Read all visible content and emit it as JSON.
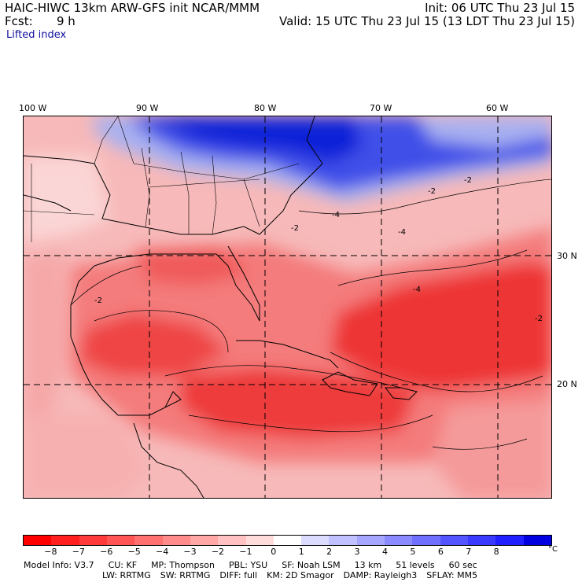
{
  "header": {
    "title": "HAIC-HIWC 13km ARW-GFS init   NCAR/MMM",
    "fcst_label": "Fcst:",
    "fcst_value": "9 h",
    "init": "Init: 06 UTC Thu 23 Jul 15",
    "valid": "Valid: 15 UTC Thu 23 Jul 15 (13 LDT Thu 23 Jul 15)"
  },
  "field_name": "Lifted index",
  "map": {
    "longitude_labels": [
      "100 W",
      "90 W",
      "80 W",
      "70 W",
      "60 W"
    ],
    "latitude_labels": [
      "30 N",
      "20 N"
    ],
    "colors": {
      "background_warm": "#f6b3b3",
      "strong_negative": "#ee2a2a",
      "moderate_negative": "#f46a6a",
      "stable": "#2030e0",
      "stable_light": "#a8b0f0"
    },
    "contour_labels": [
      "-2",
      "-2",
      "-2",
      "-4",
      "-4",
      "-2",
      "-2",
      "-4"
    ]
  },
  "colorbar": {
    "colors": [
      "#ff0000",
      "#ff1f1f",
      "#ff3a3a",
      "#ff5555",
      "#ff7070",
      "#ff8b8b",
      "#ffa6a6",
      "#ffc1c1",
      "#ffdcdc",
      "#ffffff",
      "#dcdcff",
      "#c1c1ff",
      "#a6a6ff",
      "#8b8bff",
      "#7070ff",
      "#5555ff",
      "#3a3aff",
      "#1f1fff",
      "#0000e0"
    ],
    "labels": [
      "−8",
      "−7",
      "−6",
      "−5",
      "−4",
      "−3",
      "−2",
      "−1",
      "0",
      "1",
      "2",
      "3",
      "4",
      "5",
      "6",
      "7",
      "8"
    ],
    "unit": "°C"
  },
  "model_info": {
    "line1": [
      "Model Info: V3.7",
      "CU: KF",
      "MP: Thompson",
      "PBL: YSU",
      "SF: Noah LSM",
      "13 km",
      "51 levels",
      "60 sec"
    ],
    "line2": [
      "LW: RRTMG",
      "SW: RRTMG",
      "DIFF: full",
      "KM: 2D Smagor",
      "DAMP: Rayleigh3",
      "SFLAY: MM5"
    ]
  }
}
